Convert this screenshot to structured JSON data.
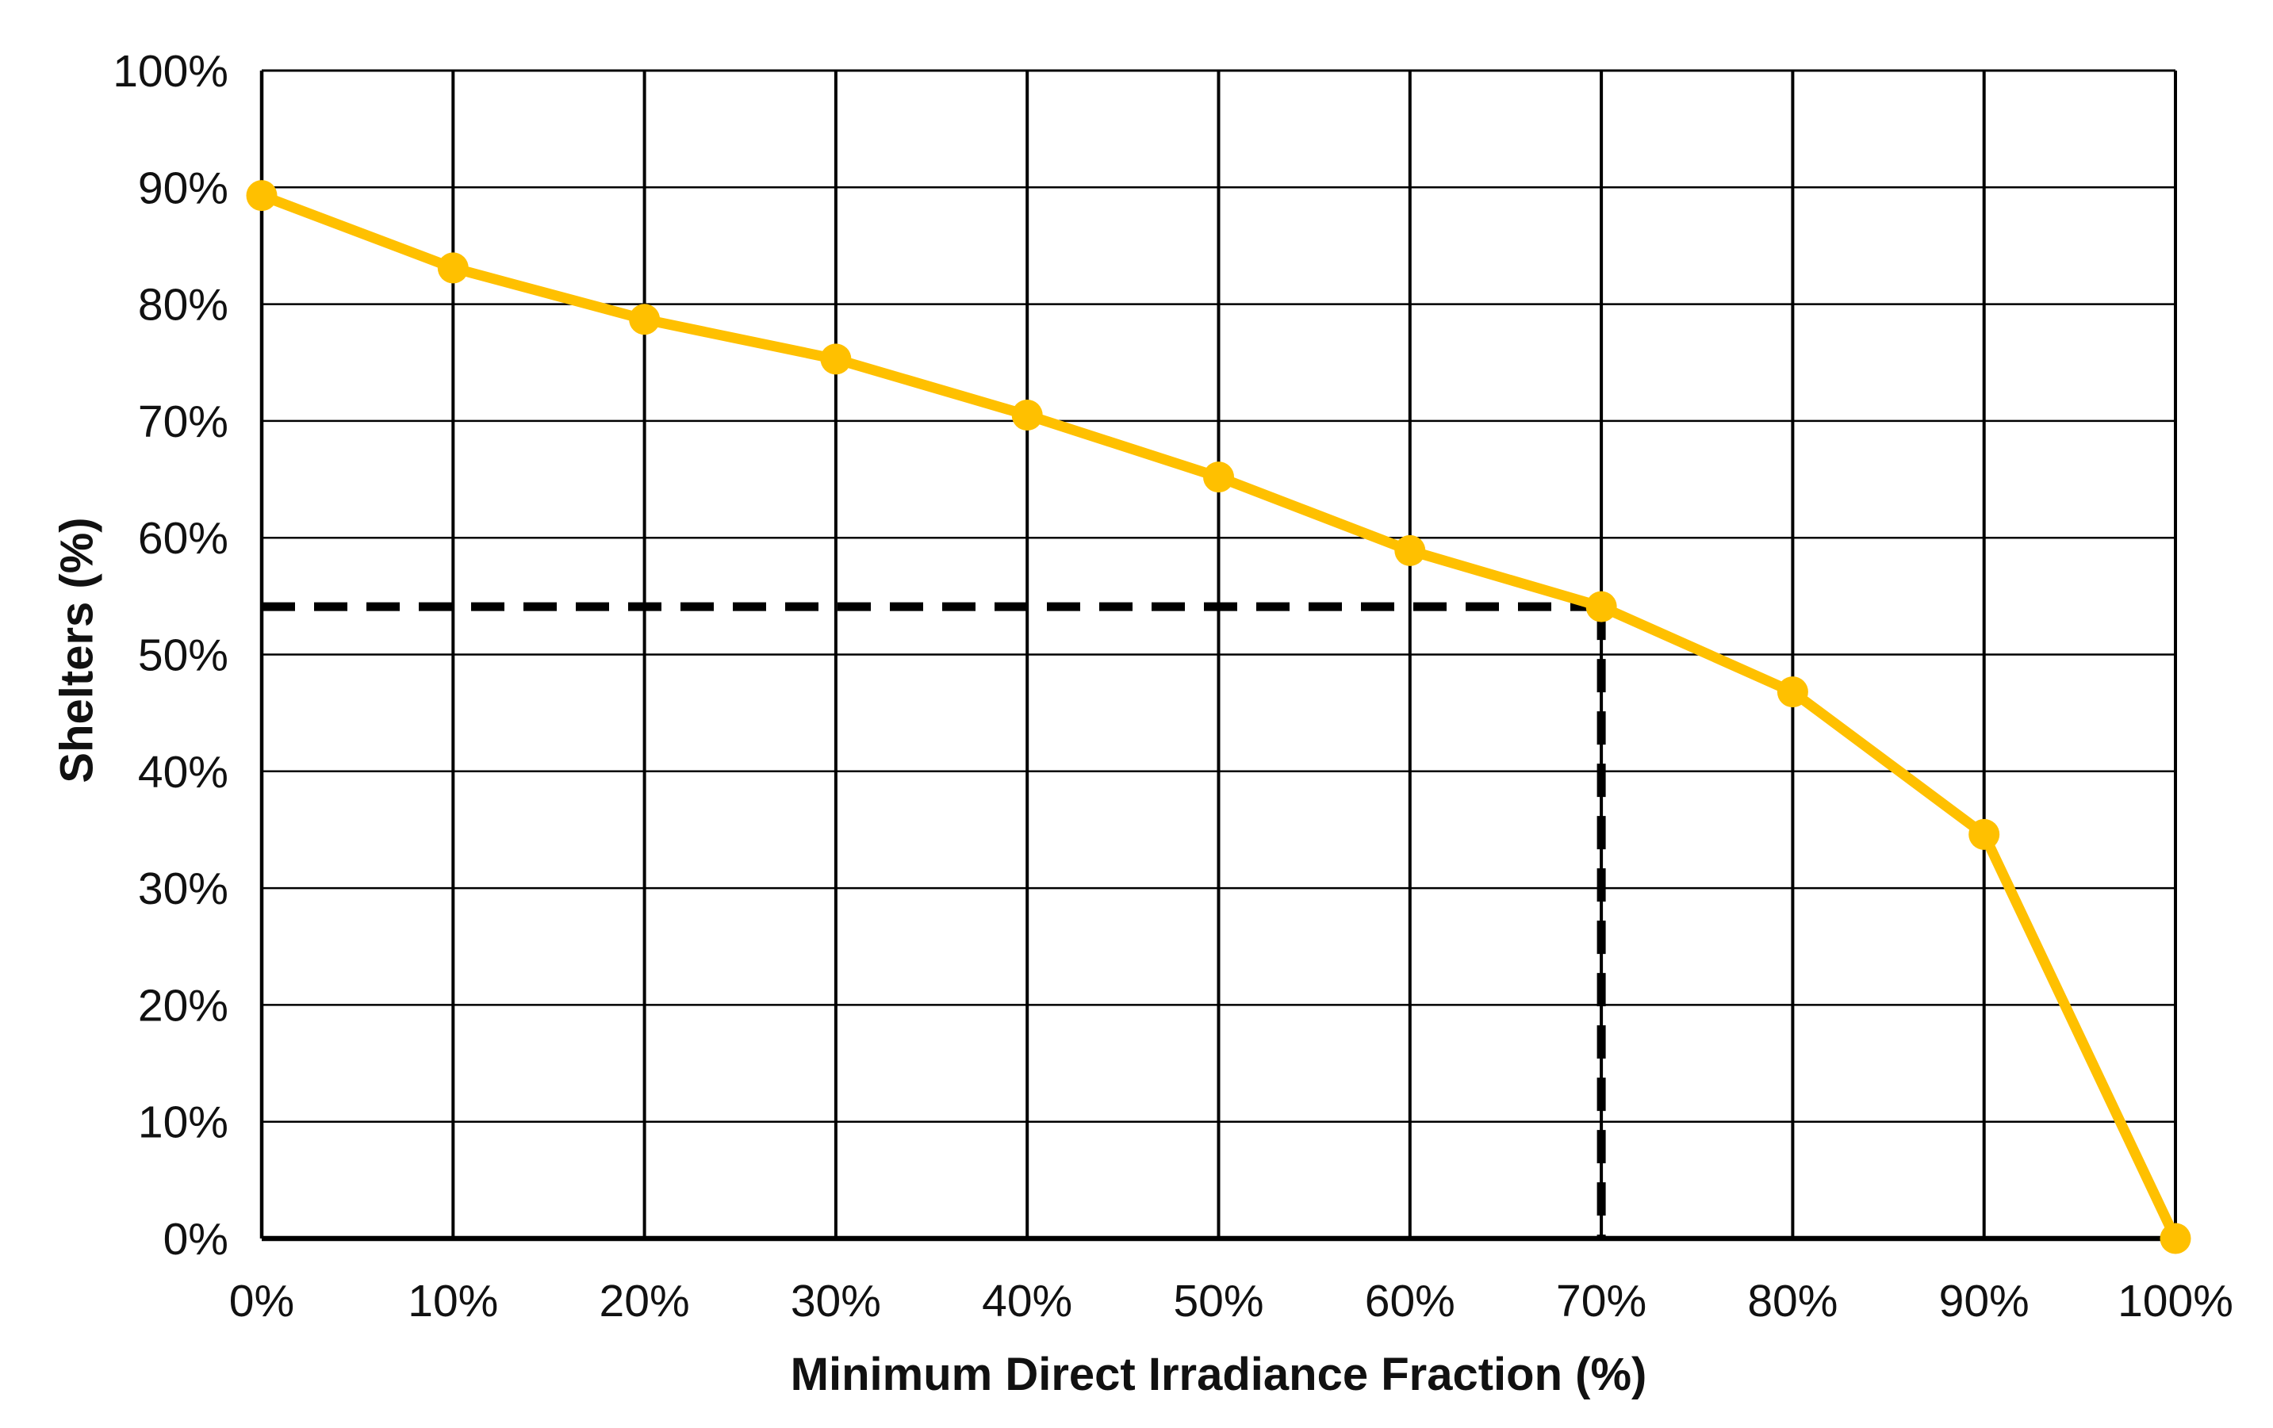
{
  "chart_data": {
    "type": "line",
    "title": "",
    "xlabel": "Minimum Direct Irradiance Fraction (%)",
    "ylabel": "Shelters (%)",
    "x": [
      0,
      10,
      20,
      30,
      40,
      50,
      60,
      70,
      80,
      90,
      100
    ],
    "series": [
      {
        "name": "Shelters",
        "color": "#FFC000",
        "values": [
          89.3,
          83.1,
          78.7,
          75.3,
          70.5,
          65.2,
          58.9,
          54.1,
          46.8,
          34.6,
          0
        ]
      }
    ],
    "x_tick_labels": [
      "0%",
      "10%",
      "20%",
      "30%",
      "40%",
      "50%",
      "60%",
      "70%",
      "80%",
      "90%",
      "100%"
    ],
    "y_tick_labels": [
      "0%",
      "10%",
      "20%",
      "30%",
      "40%",
      "50%",
      "60%",
      "70%",
      "80%",
      "90%",
      "100%"
    ],
    "xlim": [
      0,
      100
    ],
    "ylim": [
      0,
      100
    ],
    "grid": true,
    "legend": "none",
    "annotations": {
      "dashed_crosshair": {
        "x": 70,
        "y": 54.1,
        "color": "#000000",
        "style": "dashed"
      }
    },
    "styles": {
      "background": "#FFFFFF",
      "gridline_color": "#000000",
      "axis_color": "#000000",
      "text_color": "#111111"
    }
  }
}
